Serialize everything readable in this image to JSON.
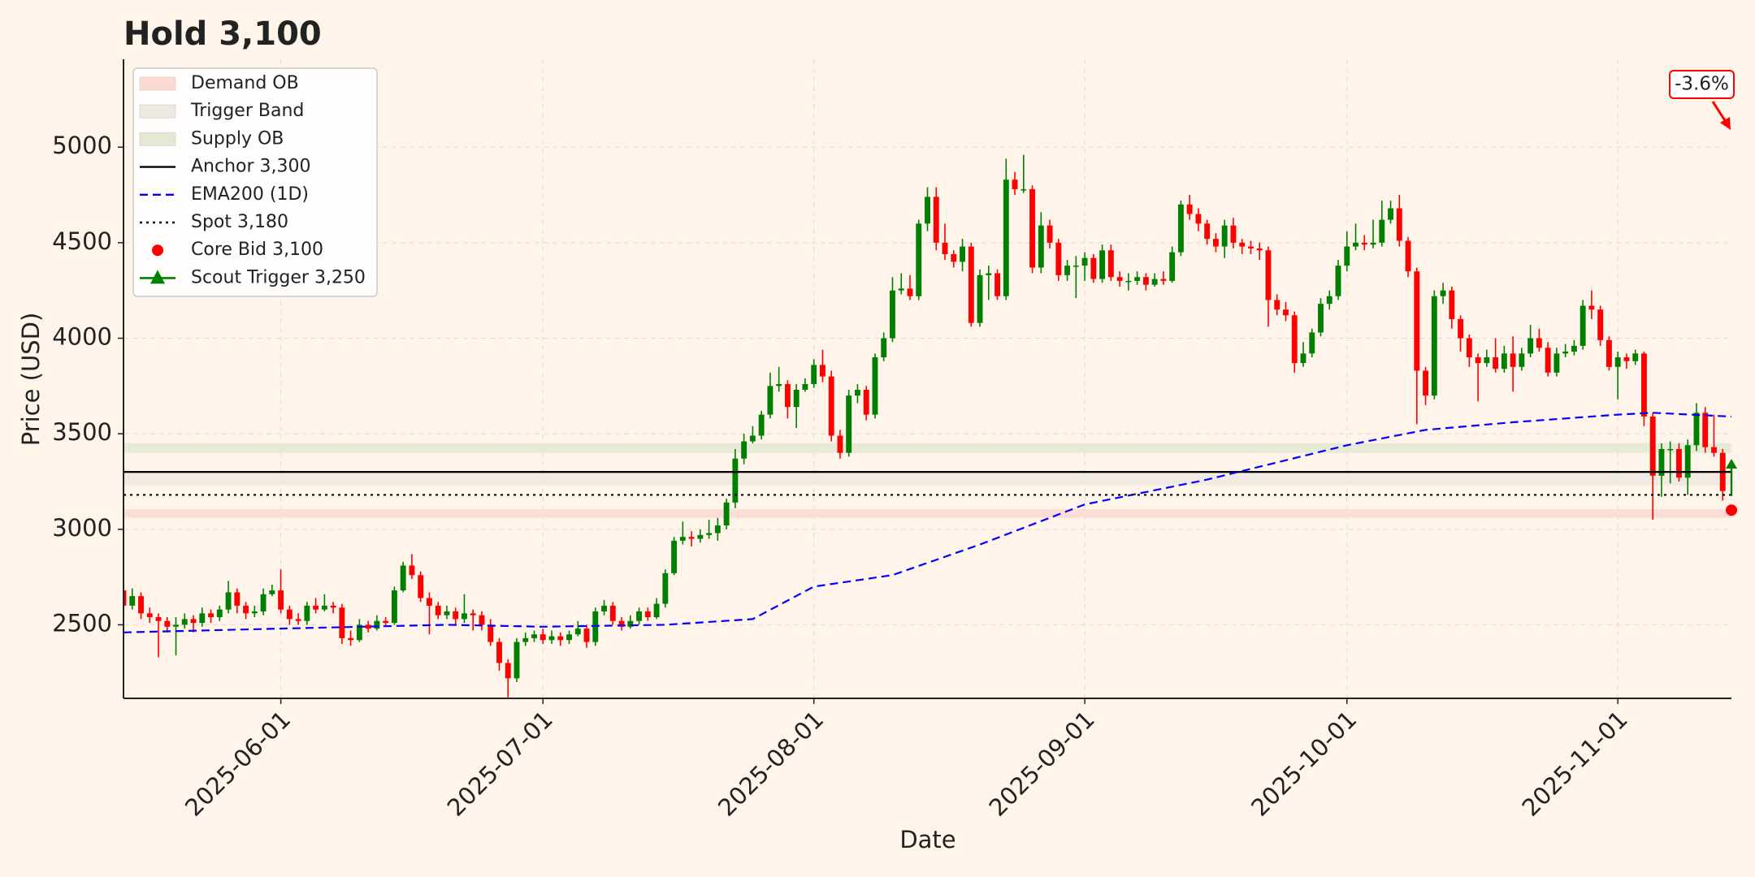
{
  "chart_data": {
    "type": "candlestick",
    "title": "Hold 3,100",
    "x_label": "Date",
    "y_label": "Price (USD)",
    "xlim": [
      "2025-05-14",
      "2025-11-14"
    ],
    "ylim": [
      2115,
      5460
    ],
    "xticks": [
      "2025-06-01",
      "2025-07-01",
      "2025-08-01",
      "2025-09-01",
      "2025-10-01",
      "2025-11-01"
    ],
    "yticks": [
      2500,
      3000,
      3500,
      4000,
      4500,
      5000
    ],
    "grid": true,
    "legend": "upper left",
    "up_color": "#008000",
    "down_color": "#ff0000",
    "dates": [
      "2025-05-14",
      "2025-05-15",
      "2025-05-16",
      "2025-05-17",
      "2025-05-18",
      "2025-05-19",
      "2025-05-20",
      "2025-05-21",
      "2025-05-22",
      "2025-05-23",
      "2025-05-24",
      "2025-05-25",
      "2025-05-26",
      "2025-05-27",
      "2025-05-28",
      "2025-05-29",
      "2025-05-30",
      "2025-05-31",
      "2025-06-01",
      "2025-06-02",
      "2025-06-03",
      "2025-06-04",
      "2025-06-05",
      "2025-06-06",
      "2025-06-07",
      "2025-06-08",
      "2025-06-09",
      "2025-06-10",
      "2025-06-11",
      "2025-06-12",
      "2025-06-13",
      "2025-06-14",
      "2025-06-15",
      "2025-06-16",
      "2025-06-17",
      "2025-06-18",
      "2025-06-19",
      "2025-06-20",
      "2025-06-21",
      "2025-06-22",
      "2025-06-23",
      "2025-06-24",
      "2025-06-25",
      "2025-06-26",
      "2025-06-27",
      "2025-06-28",
      "2025-06-29",
      "2025-06-30",
      "2025-07-01",
      "2025-07-02",
      "2025-07-03",
      "2025-07-04",
      "2025-07-05",
      "2025-07-06",
      "2025-07-07",
      "2025-07-08",
      "2025-07-09",
      "2025-07-10",
      "2025-07-11",
      "2025-07-12",
      "2025-07-13",
      "2025-07-14",
      "2025-07-15",
      "2025-07-16",
      "2025-07-17",
      "2025-07-18",
      "2025-07-19",
      "2025-07-20",
      "2025-07-21",
      "2025-07-22",
      "2025-07-23",
      "2025-07-24",
      "2025-07-25",
      "2025-07-26",
      "2025-07-27",
      "2025-07-28",
      "2025-07-29",
      "2025-07-30",
      "2025-07-31",
      "2025-08-01",
      "2025-08-02",
      "2025-08-03",
      "2025-08-04",
      "2025-08-05",
      "2025-08-06",
      "2025-08-07",
      "2025-08-08",
      "2025-08-09",
      "2025-08-10",
      "2025-08-11",
      "2025-08-12",
      "2025-08-13",
      "2025-08-14",
      "2025-08-15",
      "2025-08-16",
      "2025-08-17",
      "2025-08-18",
      "2025-08-19",
      "2025-08-20",
      "2025-08-21",
      "2025-08-22",
      "2025-08-23",
      "2025-08-24",
      "2025-08-25",
      "2025-08-26",
      "2025-08-27",
      "2025-08-28",
      "2025-08-29",
      "2025-08-30",
      "2025-08-31",
      "2025-09-01",
      "2025-09-02",
      "2025-09-03",
      "2025-09-04",
      "2025-09-05",
      "2025-09-06",
      "2025-09-07",
      "2025-09-08",
      "2025-09-09",
      "2025-09-10",
      "2025-09-11",
      "2025-09-12",
      "2025-09-13",
      "2025-09-14",
      "2025-09-15",
      "2025-09-16",
      "2025-09-17",
      "2025-09-18",
      "2025-09-19",
      "2025-09-20",
      "2025-09-21",
      "2025-09-22",
      "2025-09-23",
      "2025-09-24",
      "2025-09-25",
      "2025-09-26",
      "2025-09-27",
      "2025-09-28",
      "2025-09-29",
      "2025-09-30",
      "2025-10-01",
      "2025-10-02",
      "2025-10-03",
      "2025-10-04",
      "2025-10-05",
      "2025-10-06",
      "2025-10-07",
      "2025-10-08",
      "2025-10-09",
      "2025-10-10",
      "2025-10-11",
      "2025-10-12",
      "2025-10-13",
      "2025-10-14",
      "2025-10-15",
      "2025-10-16",
      "2025-10-17",
      "2025-10-18",
      "2025-10-19",
      "2025-10-20",
      "2025-10-21",
      "2025-10-22",
      "2025-10-23",
      "2025-10-24",
      "2025-10-25",
      "2025-10-26",
      "2025-10-27",
      "2025-10-28",
      "2025-10-29",
      "2025-10-30",
      "2025-10-31",
      "2025-11-01",
      "2025-11-02",
      "2025-11-03",
      "2025-11-04",
      "2025-11-05",
      "2025-11-06",
      "2025-11-07",
      "2025-11-08",
      "2025-11-09",
      "2025-11-10",
      "2025-11-11",
      "2025-11-12",
      "2025-11-13"
    ],
    "open": [
      2680,
      2600,
      2650,
      2560,
      2540,
      2520,
      2490,
      2500,
      2530,
      2510,
      2560,
      2540,
      2580,
      2670,
      2600,
      2560,
      2570,
      2660,
      2680,
      2580,
      2530,
      2520,
      2600,
      2580,
      2600,
      2590,
      2430,
      2420,
      2500,
      2480,
      2520,
      2510,
      2680,
      2810,
      2760,
      2640,
      2600,
      2550,
      2570,
      2530,
      2560,
      2550,
      2500,
      2410,
      2300,
      2220,
      2410,
      2430,
      2450,
      2420,
      2440,
      2420,
      2450,
      2480,
      2410,
      2570,
      2600,
      2520,
      2490,
      2520,
      2570,
      2540,
      2610,
      2770,
      2940,
      2960,
      2950,
      2970,
      2980,
      3020,
      3140,
      3370,
      3460,
      3490,
      3600,
      3750,
      3760,
      3640,
      3730,
      3760,
      3860,
      3800,
      3490,
      3400,
      3700,
      3730,
      3600,
      3900,
      4000,
      4250,
      4260,
      4220,
      4600,
      4740,
      4500,
      4440,
      4400,
      4480,
      4080,
      4330,
      4340,
      4220,
      4830,
      4780,
      4780,
      4370,
      4590,
      4500,
      4330,
      4380,
      4380,
      4420,
      4310,
      4460,
      4320,
      4300,
      4300,
      4320,
      4280,
      4310,
      4300,
      4450,
      4700,
      4650,
      4600,
      4520,
      4480,
      4590,
      4500,
      4480,
      4470,
      4460,
      4200,
      4150,
      4120,
      3870,
      3920,
      4030,
      4180,
      4220,
      4380,
      4480,
      4500,
      4490,
      4500,
      4620,
      4680,
      4510,
      4350,
      3830,
      3700,
      4220,
      4250,
      4100,
      4000,
      3900,
      3870,
      3900,
      3840,
      3920,
      3850,
      3920,
      4000,
      3950,
      3820,
      3920,
      3930,
      3960,
      4170,
      4150,
      3990,
      3850,
      3900,
      3880,
      3920,
      3590,
      3280,
      3420,
      3420,
      3270,
      3440,
      3610,
      3430,
      3400
    ],
    "high": [
      2700,
      2690,
      2670,
      2590,
      2560,
      2540,
      2540,
      2560,
      2550,
      2590,
      2580,
      2600,
      2730,
      2690,
      2620,
      2600,
      2690,
      2710,
      2790,
      2600,
      2560,
      2620,
      2640,
      2660,
      2620,
      2610,
      2470,
      2530,
      2520,
      2550,
      2540,
      2700,
      2830,
      2870,
      2780,
      2670,
      2620,
      2600,
      2590,
      2660,
      2580,
      2570,
      2530,
      2430,
      2320,
      2430,
      2460,
      2470,
      2480,
      2470,
      2460,
      2470,
      2520,
      2500,
      2590,
      2630,
      2620,
      2540,
      2550,
      2590,
      2590,
      2640,
      2790,
      2960,
      3040,
      2990,
      3000,
      3050,
      3060,
      3160,
      3420,
      3500,
      3540,
      3620,
      3820,
      3850,
      3780,
      3760,
      3790,
      3890,
      3940,
      3830,
      3520,
      3730,
      3760,
      3750,
      3920,
      4030,
      4320,
      4340,
      4330,
      4620,
      4790,
      4790,
      4600,
      4460,
      4520,
      4500,
      4360,
      4380,
      4360,
      4940,
      4870,
      4960,
      4800,
      4660,
      4620,
      4520,
      4410,
      4430,
      4450,
      4440,
      4490,
      4490,
      4350,
      4340,
      4350,
      4340,
      4340,
      4350,
      4480,
      4720,
      4750,
      4680,
      4620,
      4550,
      4620,
      4630,
      4520,
      4510,
      4500,
      4480,
      4230,
      4190,
      4140,
      3980,
      4050,
      4210,
      4250,
      4410,
      4560,
      4600,
      4540,
      4620,
      4720,
      4720,
      4750,
      4530,
      4370,
      3850,
      4250,
      4290,
      4270,
      4120,
      4020,
      3920,
      3940,
      4000,
      3960,
      4010,
      3950,
      4070,
      4050,
      3980,
      3950,
      3970,
      3990,
      4200,
      4250,
      4170,
      4010,
      3930,
      3920,
      3940,
      3930,
      3610,
      3450,
      3460,
      3450,
      3470,
      3660,
      3640,
      3600,
      3420
    ],
    "low": [
      2570,
      2580,
      2530,
      2510,
      2330,
      2460,
      2340,
      2480,
      2460,
      2490,
      2510,
      2520,
      2560,
      2560,
      2530,
      2540,
      2550,
      2650,
      2560,
      2500,
      2500,
      2500,
      2560,
      2570,
      2560,
      2400,
      2390,
      2410,
      2460,
      2470,
      2490,
      2500,
      2670,
      2740,
      2620,
      2450,
      2530,
      2530,
      2500,
      2510,
      2470,
      2470,
      2390,
      2260,
      2120,
      2200,
      2390,
      2410,
      2400,
      2400,
      2390,
      2400,
      2440,
      2380,
      2390,
      2550,
      2500,
      2470,
      2480,
      2500,
      2520,
      2530,
      2590,
      2760,
      2920,
      2910,
      2930,
      2950,
      2940,
      3000,
      3110,
      3340,
      3450,
      3470,
      3580,
      3720,
      3580,
      3530,
      3720,
      3740,
      3770,
      3460,
      3370,
      3380,
      3660,
      3570,
      3580,
      3880,
      3980,
      4230,
      4200,
      4200,
      4560,
      4460,
      4410,
      4370,
      4350,
      4060,
      4060,
      4200,
      4200,
      4200,
      4750,
      4760,
      4340,
      4340,
      4470,
      4300,
      4300,
      4210,
      4300,
      4290,
      4290,
      4300,
      4270,
      4250,
      4280,
      4250,
      4270,
      4280,
      4290,
      4430,
      4620,
      4560,
      4490,
      4450,
      4420,
      4470,
      4440,
      4440,
      4410,
      4060,
      4120,
      4090,
      3820,
      3850,
      3900,
      4010,
      4150,
      4200,
      4350,
      4460,
      4460,
      4470,
      4480,
      4600,
      4480,
      4320,
      3550,
      3650,
      3680,
      4180,
      4050,
      3930,
      3850,
      3670,
      3850,
      3820,
      3820,
      3720,
      3830,
      3900,
      3930,
      3800,
      3800,
      3900,
      3910,
      3940,
      4100,
      3960,
      3830,
      3680,
      3840,
      3860,
      3540,
      3050,
      3170,
      3240,
      3250,
      3180,
      3410,
      3400,
      3380,
      3150
    ],
    "close": [
      2600,
      2650,
      2560,
      2540,
      2520,
      2490,
      2500,
      2530,
      2510,
      2560,
      2540,
      2580,
      2670,
      2600,
      2560,
      2570,
      2660,
      2680,
      2580,
      2530,
      2520,
      2600,
      2580,
      2600,
      2590,
      2430,
      2420,
      2500,
      2480,
      2520,
      2510,
      2680,
      2810,
      2760,
      2640,
      2600,
      2550,
      2570,
      2530,
      2560,
      2550,
      2500,
      2410,
      2300,
      2220,
      2410,
      2430,
      2450,
      2420,
      2440,
      2420,
      2450,
      2480,
      2410,
      2570,
      2600,
      2520,
      2490,
      2520,
      2570,
      2540,
      2610,
      2770,
      2940,
      2960,
      2950,
      2970,
      2980,
      3020,
      3140,
      3370,
      3460,
      3490,
      3600,
      3750,
      3760,
      3640,
      3730,
      3760,
      3860,
      3800,
      3490,
      3400,
      3700,
      3730,
      3600,
      3900,
      4000,
      4250,
      4260,
      4220,
      4600,
      4740,
      4500,
      4440,
      4400,
      4480,
      4080,
      4330,
      4340,
      4220,
      4830,
      4780,
      4780,
      4370,
      4590,
      4500,
      4330,
      4380,
      4380,
      4420,
      4310,
      4460,
      4320,
      4300,
      4300,
      4320,
      4280,
      4310,
      4300,
      4450,
      4700,
      4650,
      4600,
      4520,
      4480,
      4590,
      4500,
      4480,
      4470,
      4460,
      4200,
      4150,
      4120,
      3870,
      3920,
      4030,
      4180,
      4220,
      4380,
      4480,
      4500,
      4490,
      4500,
      4620,
      4680,
      4510,
      4350,
      3830,
      3700,
      4220,
      4250,
      4100,
      4000,
      3900,
      3870,
      3900,
      3840,
      3920,
      3850,
      3920,
      4000,
      3950,
      3820,
      3920,
      3930,
      3960,
      4170,
      4150,
      3990,
      3850,
      3900,
      3880,
      3920,
      3590,
      3280,
      3420,
      3420,
      3270,
      3440,
      3610,
      3430,
      3400,
      3200
    ],
    "overlays": [
      {
        "kind": "band",
        "name": "Demand OB",
        "color": "#fcd9d2",
        "range": [
          3060,
          3105
        ]
      },
      {
        "kind": "band",
        "name": "Trigger Band",
        "color": "#ece8e2",
        "range": [
          3230,
          3290
        ]
      },
      {
        "kind": "band",
        "name": "Supply OB",
        "color": "#e3e8d2",
        "range": [
          3400,
          3450
        ]
      },
      {
        "kind": "hline",
        "name": "Anchor 3,300",
        "color": "#000000",
        "style": "solid",
        "value": 3300
      },
      {
        "kind": "ema",
        "name": "EMA200 (1D)",
        "color": "#0000ff",
        "style": "dashed",
        "x": [
          "2025-05-14",
          "2025-06-01",
          "2025-06-20",
          "2025-07-01",
          "2025-07-15",
          "2025-07-25",
          "2025-08-01",
          "2025-08-10",
          "2025-08-20",
          "2025-09-01",
          "2025-09-15",
          "2025-10-01",
          "2025-10-10",
          "2025-10-20",
          "2025-11-01",
          "2025-11-05",
          "2025-11-14"
        ],
        "values": [
          2460,
          2480,
          2500,
          2490,
          2500,
          2530,
          2700,
          2760,
          2920,
          3130,
          3260,
          3440,
          3520,
          3560,
          3600,
          3610,
          3590
        ]
      },
      {
        "kind": "hline",
        "name": "Spot 3,180",
        "color": "#000000",
        "style": "dotted",
        "value": 3180
      },
      {
        "kind": "point",
        "name": "Core Bid 3,100",
        "color": "#ff0000",
        "marker": "circle",
        "x": "2025-11-14",
        "value": 3100
      },
      {
        "kind": "point",
        "name": "Scout Trigger 3,250",
        "color": "#008000",
        "marker": "triangle",
        "x": "2025-11-14",
        "value": 3250
      }
    ],
    "annotation": {
      "text": "-3.6%",
      "color": "#ff0000"
    }
  }
}
